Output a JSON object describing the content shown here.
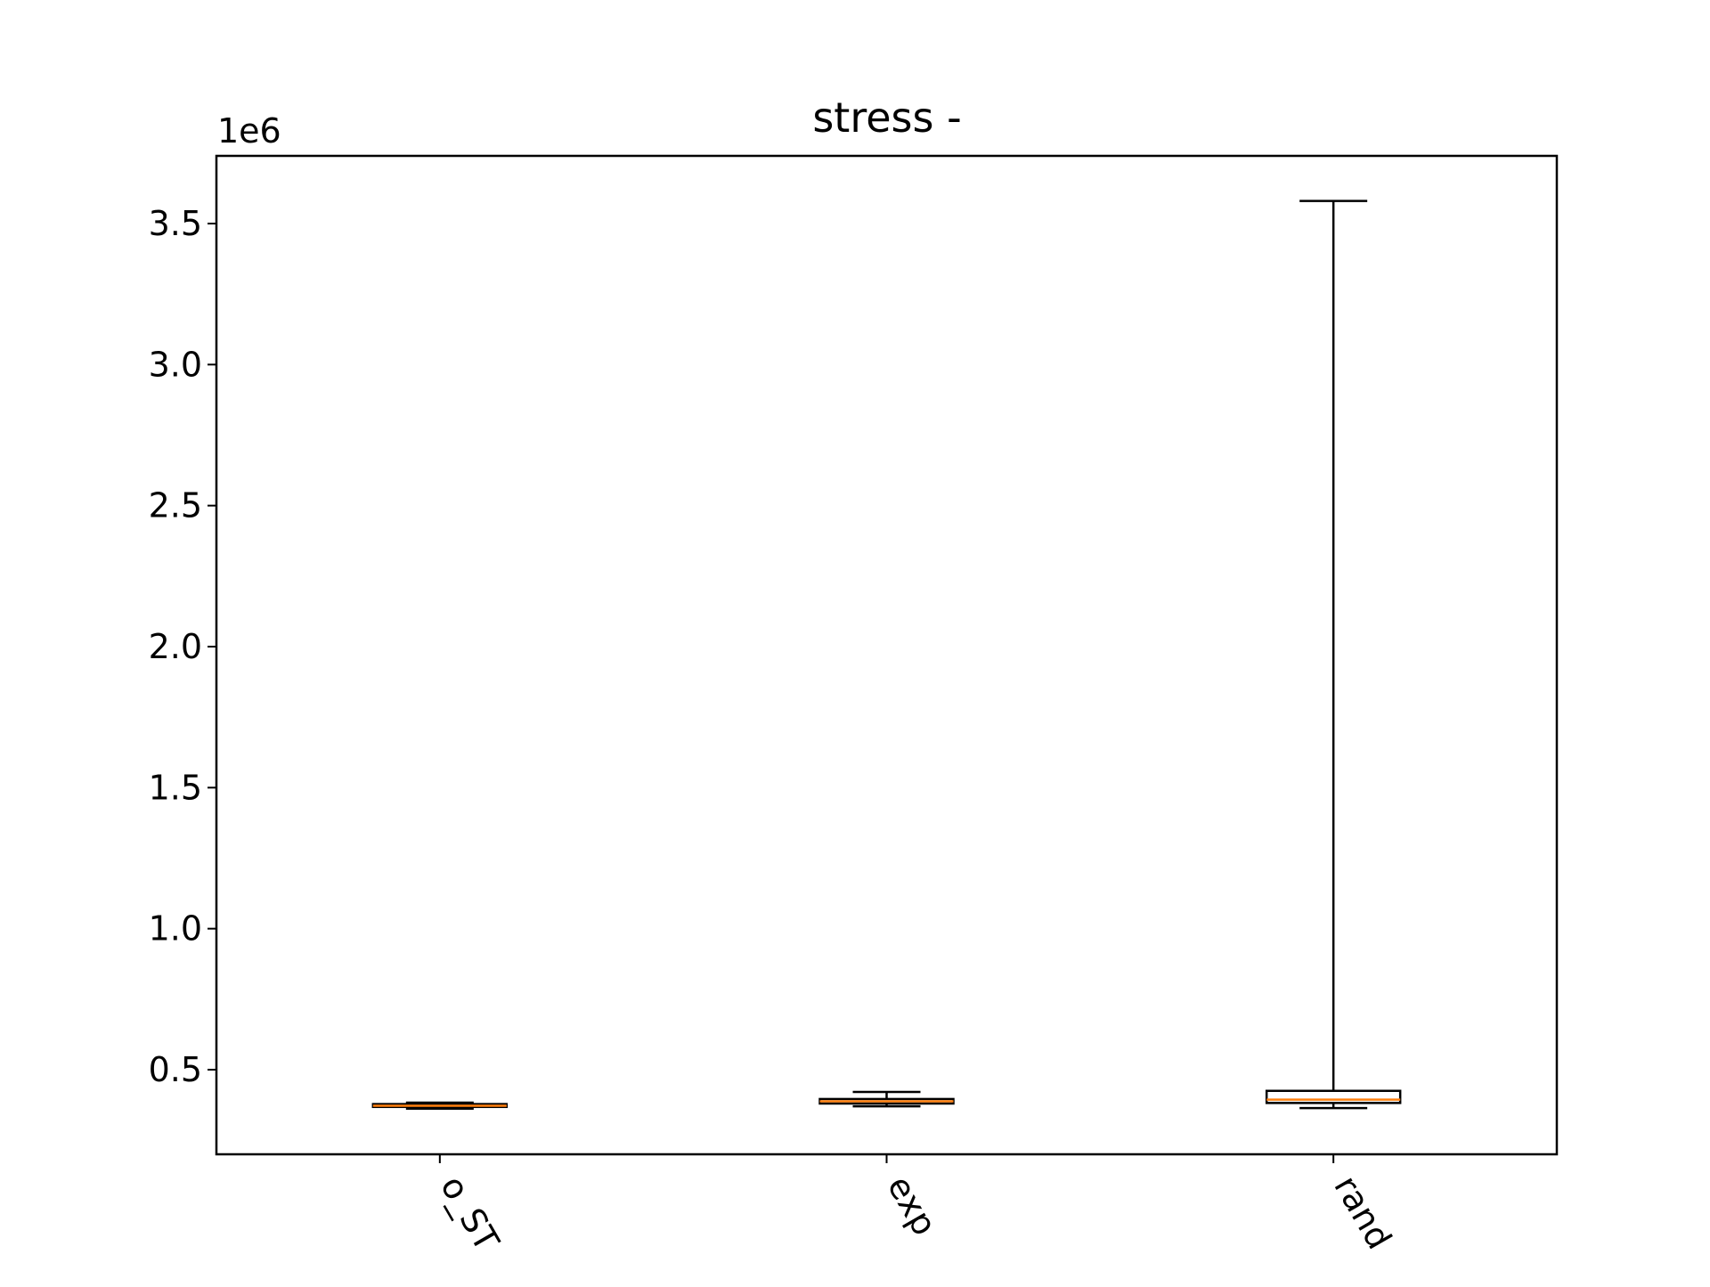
{
  "chart_data": {
    "type": "box",
    "title": "stress -",
    "xlabel": "",
    "ylabel": "",
    "y_offset_label": "1e6",
    "y_scale_factor": 1000000,
    "ylim": [
      0.2,
      3.74
    ],
    "yticks": [
      0.5,
      1.0,
      1.5,
      2.0,
      2.5,
      3.0,
      3.5
    ],
    "ytick_labels": [
      "0.5",
      "1.0",
      "1.5",
      "2.0",
      "2.5",
      "3.0",
      "3.5"
    ],
    "categories": [
      "o_ST",
      "exp",
      "rand"
    ],
    "boxes": [
      {
        "category": "o_ST",
        "whisker_low": 0.362,
        "q1": 0.368,
        "median": 0.372,
        "q3": 0.378,
        "whisker_high": 0.383
      },
      {
        "category": "exp",
        "whisker_low": 0.37,
        "q1": 0.38,
        "median": 0.388,
        "q3": 0.396,
        "whisker_high": 0.421
      },
      {
        "category": "rand",
        "whisker_low": 0.364,
        "q1": 0.382,
        "median": 0.394,
        "q3": 0.425,
        "whisker_high": 3.58
      }
    ],
    "grid": false,
    "colors": {
      "box": "#000000",
      "median": "#ff7f0e",
      "axes": "#000000",
      "background": "#ffffff"
    }
  }
}
